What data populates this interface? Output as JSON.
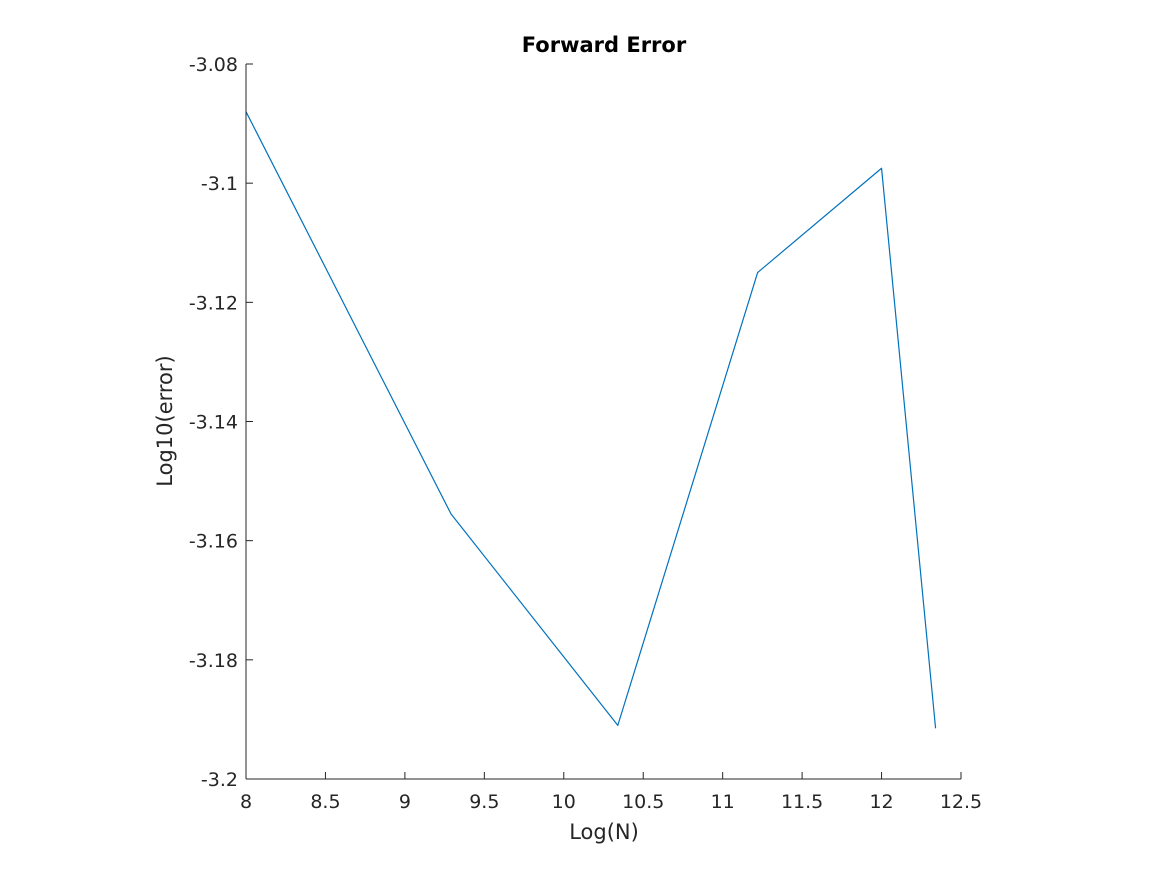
{
  "chart_data": {
    "type": "line",
    "title": "Forward Error",
    "xlabel": "Log(N)",
    "ylabel": "Log10(error)",
    "xlim": [
      8,
      12.5
    ],
    "ylim": [
      -3.2,
      -3.08
    ],
    "xticks": [
      8,
      8.5,
      9,
      9.5,
      10,
      10.5,
      11,
      11.5,
      12,
      12.5
    ],
    "xtick_labels": [
      "8",
      "8.5",
      "9",
      "9.5",
      "10",
      "10.5",
      "11",
      "11.5",
      "12",
      "12.5"
    ],
    "yticks": [
      -3.08,
      -3.1,
      -3.12,
      -3.14,
      -3.16,
      -3.18,
      -3.2
    ],
    "ytick_labels": [
      "-3.08",
      "-3.1",
      "-3.12",
      "-3.14",
      "-3.16",
      "-3.18",
      "-3.2"
    ],
    "grid": false,
    "line_color": "#0072BD",
    "series": [
      {
        "x": [
          8.0,
          9.29,
          10.34,
          11.22,
          12.0,
          12.34
        ],
        "y": [
          -3.088,
          -3.1555,
          -3.191,
          -3.115,
          -3.0975,
          -3.1915
        ]
      }
    ]
  }
}
